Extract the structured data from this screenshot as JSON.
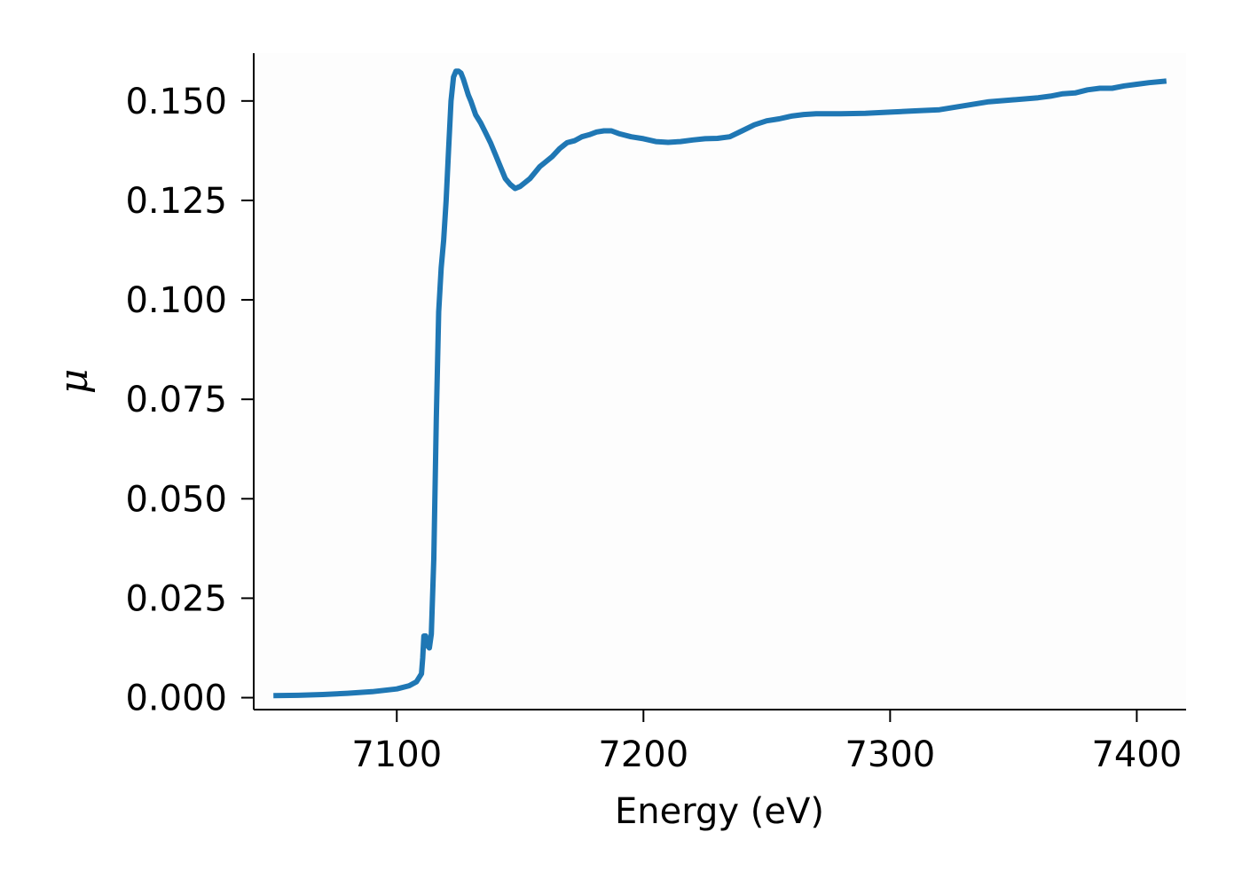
{
  "chart_data": {
    "type": "line",
    "title": "",
    "xlabel": "Energy (eV)",
    "ylabel": "μ",
    "xlim": [
      7042,
      7420
    ],
    "ylim": [
      -0.003,
      0.162
    ],
    "xticks": [
      7100,
      7200,
      7300,
      7400
    ],
    "xtick_labels": [
      "7100",
      "7200",
      "7300",
      "7400"
    ],
    "yticks": [
      0.0,
      0.025,
      0.05,
      0.075,
      0.1,
      0.125,
      0.15
    ],
    "ytick_labels": [
      "0.000",
      "0.025",
      "0.050",
      "0.075",
      "0.100",
      "0.125",
      "0.150"
    ],
    "grid": false,
    "legend": "none",
    "series": [
      {
        "color": "#1f77b4",
        "x": [
          7050,
          7060,
          7070,
          7080,
          7090,
          7100,
          7105,
          7108,
          7110,
          7110.5,
          7111,
          7111.7,
          7112.5,
          7113.2,
          7114,
          7115,
          7116,
          7117,
          7118,
          7119,
          7120,
          7121,
          7122,
          7123,
          7124,
          7125,
          7126,
          7127,
          7128,
          7129,
          7130,
          7132,
          7134,
          7136,
          7138,
          7140,
          7142,
          7144,
          7146,
          7148,
          7150,
          7152,
          7154,
          7156,
          7158,
          7160,
          7163,
          7166,
          7169,
          7172,
          7175,
          7178,
          7181,
          7184,
          7187,
          7190,
          7195,
          7200,
          7205,
          7210,
          7215,
          7220,
          7225,
          7230,
          7235,
          7240,
          7245,
          7250,
          7255,
          7260,
          7265,
          7270,
          7280,
          7290,
          7300,
          7310,
          7320,
          7330,
          7340,
          7350,
          7360,
          7365,
          7370,
          7375,
          7380,
          7385,
          7390,
          7395,
          7400,
          7405,
          7412
        ],
        "y": [
          0.0005,
          0.0006,
          0.0008,
          0.0011,
          0.0015,
          0.0022,
          0.003,
          0.004,
          0.006,
          0.01,
          0.0155,
          0.0155,
          0.013,
          0.0125,
          0.016,
          0.035,
          0.07,
          0.097,
          0.108,
          0.115,
          0.125,
          0.138,
          0.15,
          0.156,
          0.1575,
          0.1575,
          0.157,
          0.1555,
          0.1535,
          0.1515,
          0.15,
          0.1465,
          0.1445,
          0.142,
          0.1395,
          0.1365,
          0.1335,
          0.1305,
          0.129,
          0.128,
          0.1285,
          0.1295,
          0.1305,
          0.132,
          0.1335,
          0.1345,
          0.136,
          0.138,
          0.1395,
          0.14,
          0.141,
          0.1415,
          0.1422,
          0.1425,
          0.1425,
          0.1418,
          0.141,
          0.1405,
          0.1398,
          0.1396,
          0.1398,
          0.1402,
          0.1405,
          0.1406,
          0.141,
          0.1425,
          0.144,
          0.145,
          0.1455,
          0.1462,
          0.1466,
          0.1468,
          0.1468,
          0.1469,
          0.1472,
          0.1475,
          0.1478,
          0.1488,
          0.1498,
          0.1503,
          0.1508,
          0.1512,
          0.1518,
          0.152,
          0.1528,
          0.1532,
          0.1532,
          0.1538,
          0.1542,
          0.1546,
          0.155
        ]
      }
    ]
  }
}
